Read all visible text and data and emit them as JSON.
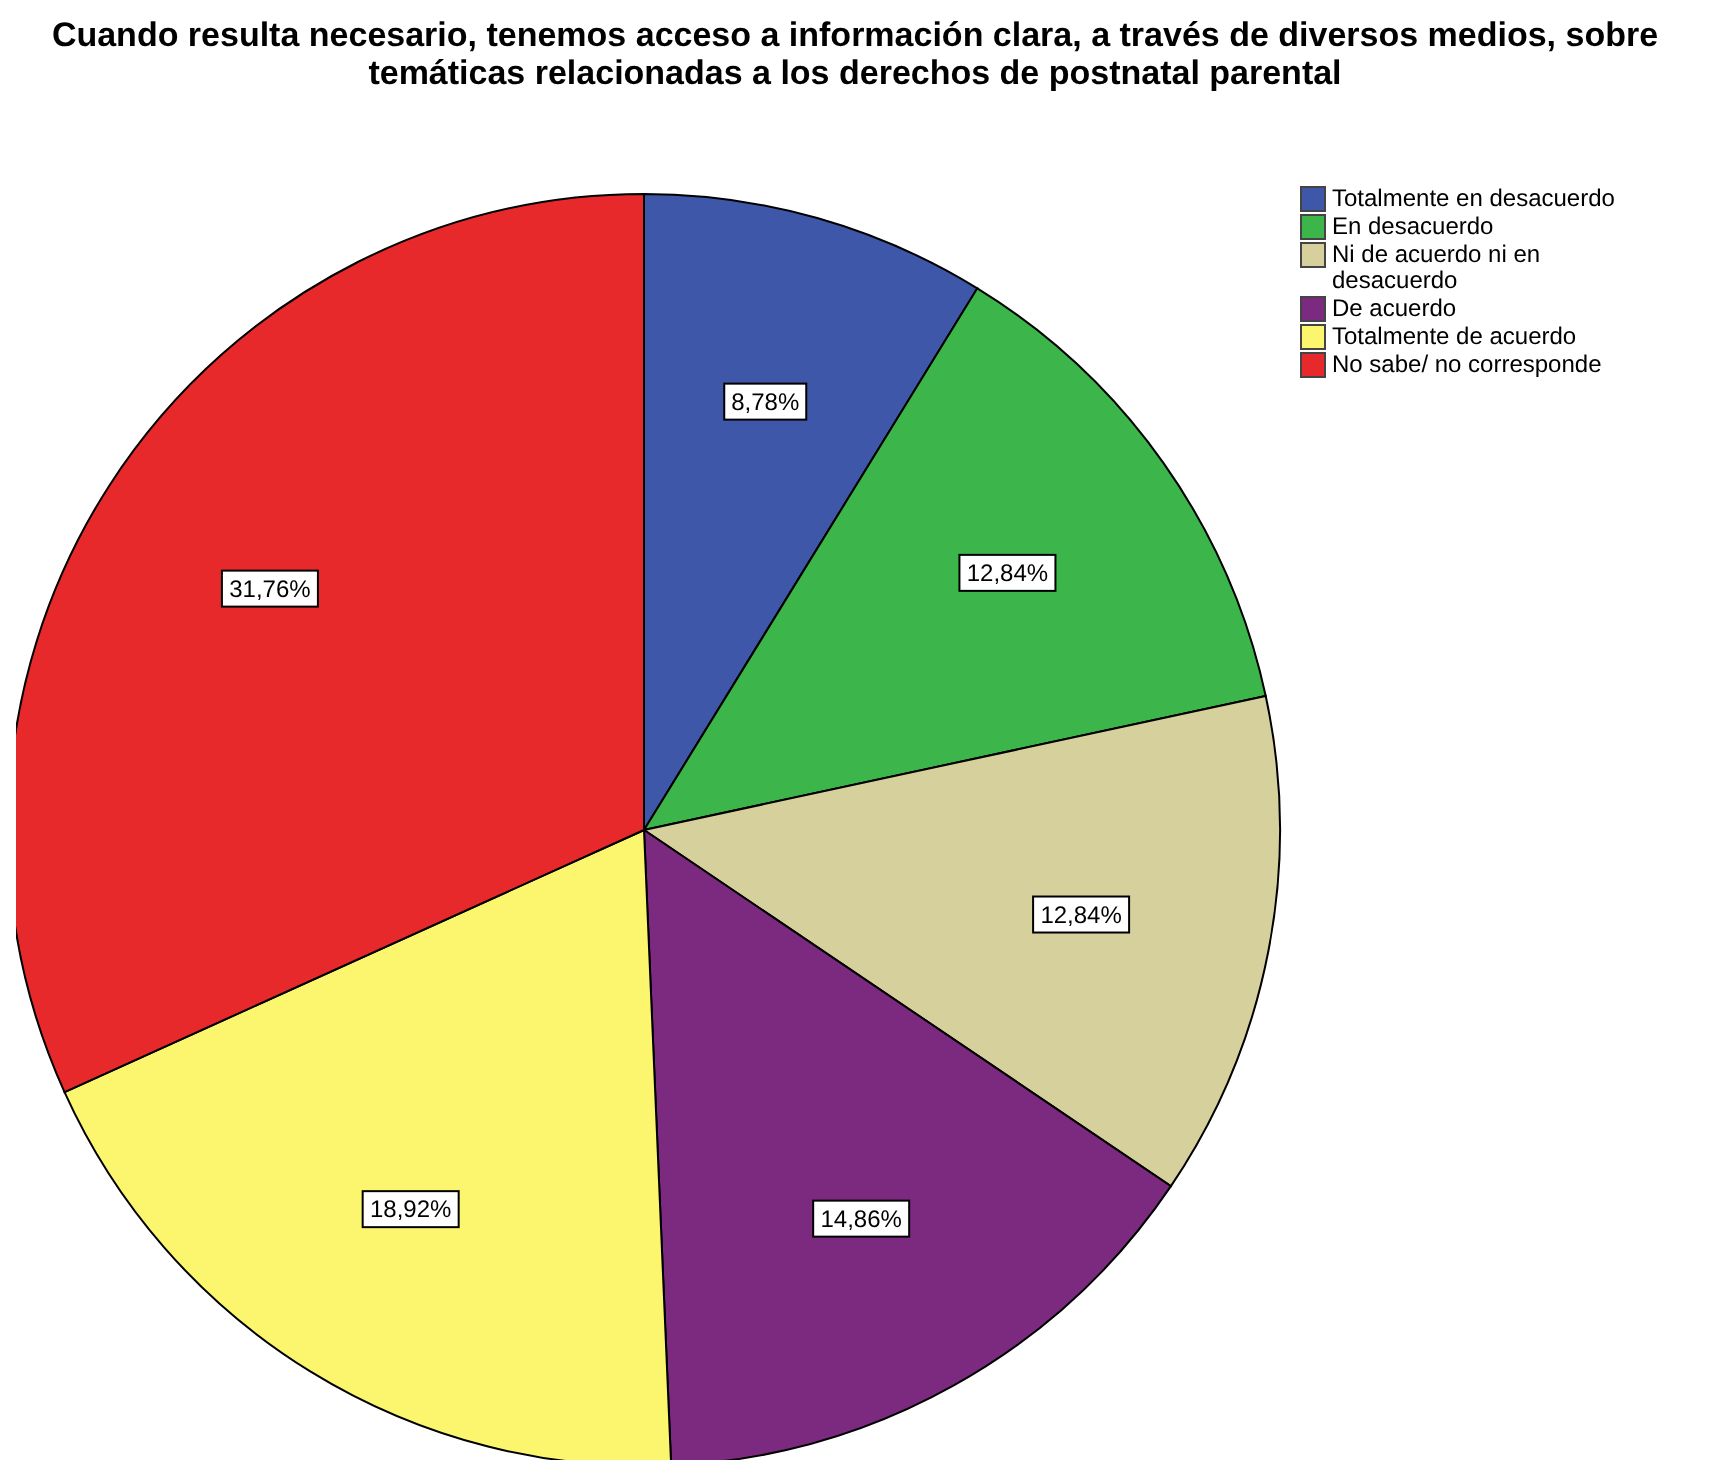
{
  "chart_data": {
    "type": "pie",
    "title": "Cuando resulta necesario, tenemos acceso a información clara, a través de diversos medios, sobre temáticas relacionadas a los derechos de postnatal parental",
    "categories": [
      "Totalmente en desacuerdo",
      "En desacuerdo",
      "Ni de acuerdo ni en desacuerdo",
      "De acuerdo",
      "Totalmente de acuerdo",
      "No sabe/ no corresponde"
    ],
    "values": [
      8.78,
      12.84,
      12.84,
      14.86,
      18.92,
      31.76
    ],
    "value_labels": [
      "8,78%",
      "12,84%",
      "12,84%",
      "14,86%",
      "18,92%",
      "31,76%"
    ],
    "colors": [
      "#3e57a8",
      "#3cb54a",
      "#d6d09c",
      "#7b2a80",
      "#fbf66e",
      "#e8292b"
    ],
    "legend": "top right"
  }
}
